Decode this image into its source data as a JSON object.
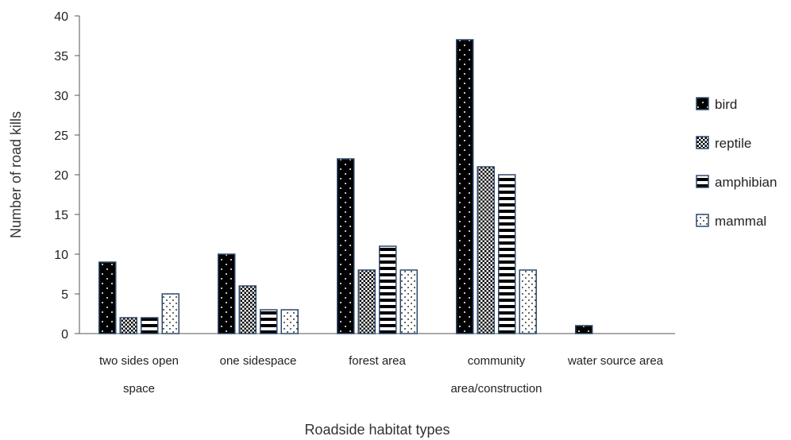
{
  "chart_data": {
    "type": "bar",
    "title": "",
    "xlabel": "Roadside habitat types",
    "ylabel": "Number of road kills",
    "ylim": [
      0,
      40
    ],
    "yticks": [
      0,
      5,
      10,
      15,
      20,
      25,
      30,
      35,
      40
    ],
    "categories": [
      [
        "two sides open",
        "space"
      ],
      [
        "one sidespace"
      ],
      [
        "forest area"
      ],
      [
        "community",
        "area/construction"
      ],
      [
        "water source area"
      ]
    ],
    "series": [
      {
        "name": "bird",
        "values": [
          9,
          10,
          22,
          37,
          1
        ],
        "pattern": "bird"
      },
      {
        "name": "reptile",
        "values": [
          2,
          6,
          8,
          21,
          0
        ],
        "pattern": "reptile"
      },
      {
        "name": "amphibian",
        "values": [
          2,
          3,
          11,
          20,
          0
        ],
        "pattern": "amphibian"
      },
      {
        "name": "mammal",
        "values": [
          5,
          3,
          8,
          8,
          0
        ],
        "pattern": "mammal"
      }
    ],
    "grid": false,
    "legend": "right",
    "colors": {
      "outline": "#2f4a6b",
      "axis": "#555555",
      "fill_dark": "#000000",
      "fill_light": "#ffffff"
    }
  }
}
